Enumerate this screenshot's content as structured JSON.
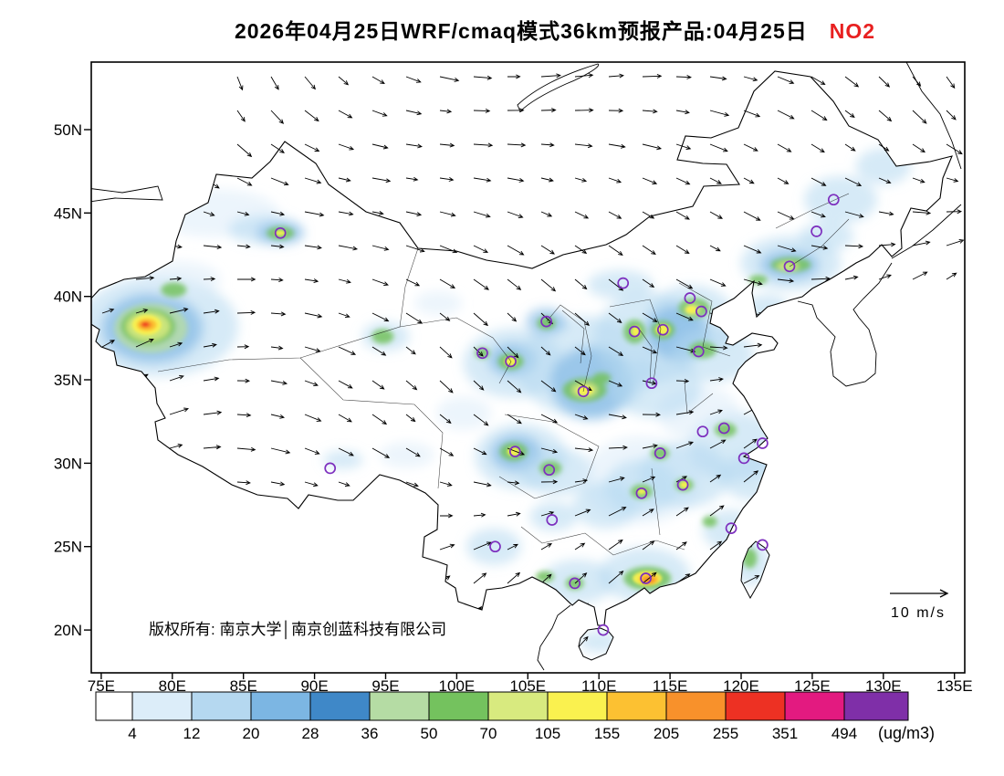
{
  "header": {
    "title": "2026年04月25日WRF/cmaq模式36km预报产品:04月25日",
    "pollutant": "NO2",
    "pollutant_color": "#e82020"
  },
  "map": {
    "copyright": "版权所有: 南京大学│南京创蓝科技有限公司",
    "wind_scale_label": "10 m/s",
    "marker_color": "#7d2fbe",
    "lat_ticks": [
      {
        "label": "50N",
        "lat": 50
      },
      {
        "label": "45N",
        "lat": 45
      },
      {
        "label": "40N",
        "lat": 40
      },
      {
        "label": "35N",
        "lat": 35
      },
      {
        "label": "30N",
        "lat": 30
      },
      {
        "label": "25N",
        "lat": 25
      },
      {
        "label": "20N",
        "lat": 20
      }
    ],
    "lon_ticks": [
      {
        "label": "75E",
        "lon": 75
      },
      {
        "label": "80E",
        "lon": 80
      },
      {
        "label": "85E",
        "lon": 85
      },
      {
        "label": "90E",
        "lon": 90
      },
      {
        "label": "95E",
        "lon": 95
      },
      {
        "label": "100E",
        "lon": 100
      },
      {
        "label": "105E",
        "lon": 105
      },
      {
        "label": "110E",
        "lon": 110
      },
      {
        "label": "115E",
        "lon": 115
      },
      {
        "label": "120E",
        "lon": 120
      },
      {
        "label": "125E",
        "lon": 125
      },
      {
        "label": "130E",
        "lon": 130
      },
      {
        "label": "135E",
        "lon": 135
      }
    ],
    "city_markers_format": "[lon,lat] purple ring markers",
    "city_markers": [
      [
        87.6,
        43.8
      ],
      [
        111.7,
        40.8
      ],
      [
        116.4,
        39.9
      ],
      [
        117.2,
        39.1
      ],
      [
        114.5,
        38.0
      ],
      [
        112.5,
        37.9
      ],
      [
        123.4,
        41.8
      ],
      [
        125.3,
        43.9
      ],
      [
        126.5,
        45.8
      ],
      [
        117.0,
        36.7
      ],
      [
        113.7,
        34.8
      ],
      [
        108.9,
        34.3
      ],
      [
        103.8,
        36.1
      ],
      [
        101.8,
        36.6
      ],
      [
        106.3,
        38.5
      ],
      [
        104.1,
        30.7
      ],
      [
        106.5,
        29.6
      ],
      [
        106.7,
        26.6
      ],
      [
        102.7,
        25.0
      ],
      [
        91.1,
        29.7
      ],
      [
        108.3,
        22.8
      ],
      [
        113.3,
        23.1
      ],
      [
        110.3,
        20.0
      ],
      [
        113.0,
        28.2
      ],
      [
        114.3,
        30.6
      ],
      [
        115.9,
        28.7
      ],
      [
        117.3,
        31.9
      ],
      [
        118.8,
        32.1
      ],
      [
        121.5,
        31.2
      ],
      [
        120.2,
        30.3
      ],
      [
        119.3,
        26.1
      ],
      [
        121.5,
        25.1
      ]
    ],
    "no2_shading_format": "[lon,lat,rx_px,ry_px,colorbar_level]",
    "no2_shading": [
      [
        83,
        45,
        70,
        26,
        1
      ],
      [
        86.5,
        44,
        40,
        16,
        2
      ],
      [
        79,
        38.2,
        88,
        55,
        2
      ],
      [
        78.6,
        38.1,
        55,
        38,
        3
      ],
      [
        80.5,
        41,
        45,
        20,
        1
      ],
      [
        95,
        37.6,
        26,
        16,
        2
      ],
      [
        98.7,
        39.6,
        26,
        13,
        1
      ],
      [
        104,
        36,
        55,
        38,
        2
      ],
      [
        103.9,
        36.2,
        26,
        18,
        3
      ],
      [
        109,
        35.8,
        75,
        55,
        2
      ],
      [
        109.5,
        34.8,
        45,
        40,
        3
      ],
      [
        113.5,
        37.5,
        60,
        50,
        2
      ],
      [
        116.5,
        38.5,
        50,
        40,
        2
      ],
      [
        115.5,
        37.8,
        35,
        30,
        3
      ],
      [
        118,
        36.5,
        45,
        30,
        2
      ],
      [
        123.5,
        42,
        55,
        30,
        2
      ],
      [
        123.4,
        41.9,
        32,
        16,
        3
      ],
      [
        127,
        45.8,
        40,
        26,
        2
      ],
      [
        130,
        47.8,
        30,
        20,
        2
      ],
      [
        126,
        43.6,
        30,
        16,
        2
      ],
      [
        104.5,
        30.4,
        50,
        36,
        2
      ],
      [
        104.2,
        30.6,
        28,
        20,
        3
      ],
      [
        107,
        29.5,
        40,
        26,
        2
      ],
      [
        113,
        29,
        65,
        48,
        1
      ],
      [
        113,
        28.6,
        40,
        30,
        2
      ],
      [
        116,
        29.3,
        50,
        36,
        2
      ],
      [
        119.5,
        31,
        50,
        38,
        2
      ],
      [
        120.8,
        29.2,
        35,
        26,
        2
      ],
      [
        117,
        33,
        45,
        30,
        1
      ],
      [
        114,
        34.5,
        50,
        32,
        2
      ],
      [
        113.2,
        23.3,
        50,
        30,
        2
      ],
      [
        108.5,
        22.9,
        40,
        24,
        2
      ],
      [
        102.6,
        25,
        30,
        20,
        2
      ],
      [
        119.2,
        26,
        30,
        22,
        2
      ],
      [
        120.7,
        24.1,
        20,
        26,
        2
      ],
      [
        110,
        19.3,
        22,
        12,
        2
      ],
      [
        92,
        30.2,
        22,
        10,
        2
      ],
      [
        87.6,
        43.8,
        26,
        12,
        3
      ],
      [
        111.5,
        40.7,
        36,
        16,
        2
      ],
      [
        106.3,
        38.5,
        22,
        14,
        3
      ],
      [
        110.5,
        27.5,
        36,
        26,
        2
      ],
      [
        106.8,
        26.8,
        26,
        16,
        2
      ],
      [
        96.5,
        30.5,
        30,
        14,
        1
      ],
      [
        100.5,
        33,
        30,
        18,
        1
      ],
      [
        121.8,
        39.3,
        25,
        15,
        2
      ],
      [
        78.5,
        38.1,
        40,
        27,
        5
      ],
      [
        78.3,
        38.2,
        30,
        20,
        6
      ],
      [
        80.1,
        40.4,
        14,
        8,
        6
      ],
      [
        87.6,
        43.8,
        15,
        7,
        6
      ],
      [
        94.8,
        37.6,
        12,
        8,
        6
      ],
      [
        103.8,
        36.1,
        14,
        9,
        6
      ],
      [
        106.3,
        38.4,
        10,
        7,
        6
      ],
      [
        109,
        34.4,
        24,
        13,
        6
      ],
      [
        112.5,
        37.9,
        12,
        13,
        6
      ],
      [
        114.5,
        38,
        13,
        10,
        6
      ],
      [
        116.7,
        39.3,
        17,
        11,
        6
      ],
      [
        117.3,
        36.8,
        15,
        9,
        6
      ],
      [
        123.5,
        41.9,
        22,
        8,
        6
      ],
      [
        104,
        30.7,
        15,
        10,
        6
      ],
      [
        106.6,
        29.7,
        12,
        8,
        6
      ],
      [
        113,
        28.3,
        12,
        8,
        6
      ],
      [
        116,
        28.7,
        10,
        7,
        6
      ],
      [
        118.9,
        32,
        12,
        8,
        6
      ],
      [
        114.3,
        30.6,
        10,
        7,
        6
      ],
      [
        113.4,
        23.1,
        26,
        13,
        6
      ],
      [
        108.3,
        22.8,
        10,
        7,
        6
      ],
      [
        120.6,
        24.3,
        8,
        11,
        6
      ],
      [
        101.8,
        36.6,
        8,
        6,
        6
      ],
      [
        110.2,
        35.1,
        10,
        6,
        6
      ],
      [
        106.2,
        23.2,
        10,
        6,
        6
      ],
      [
        121.2,
        41,
        10,
        5,
        6
      ],
      [
        117.8,
        26.5,
        8,
        6,
        6
      ],
      [
        78.3,
        38.2,
        24,
        16,
        7
      ],
      [
        109,
        34.4,
        14,
        8,
        7
      ],
      [
        116.6,
        39.2,
        9,
        6,
        7
      ],
      [
        123.3,
        41.8,
        12,
        5,
        7
      ],
      [
        78.2,
        38.3,
        16,
        11,
        8
      ],
      [
        103.8,
        36.1,
        7,
        5,
        8
      ],
      [
        109,
        34.35,
        9,
        5,
        8
      ],
      [
        104,
        30.7,
        7,
        5,
        8
      ],
      [
        113.4,
        23.1,
        16,
        8,
        8
      ],
      [
        116,
        28.7,
        5,
        4,
        8
      ],
      [
        112.6,
        37.9,
        5,
        6,
        8
      ],
      [
        87.6,
        43.8,
        6,
        3,
        8
      ],
      [
        113,
        28.3,
        5,
        3,
        8
      ],
      [
        114.5,
        38,
        8,
        6,
        8
      ],
      [
        116.5,
        39.2,
        6,
        4,
        8
      ],
      [
        78.2,
        38.3,
        11,
        7,
        9
      ],
      [
        113.5,
        23.05,
        11,
        6,
        9
      ],
      [
        78.15,
        38.3,
        7,
        4,
        10
      ],
      [
        113.5,
        23,
        7,
        4,
        10
      ],
      [
        78.1,
        38.32,
        4,
        2.5,
        11
      ]
    ]
  },
  "colorbar": {
    "tick_labels": [
      "4",
      "12",
      "20",
      "28",
      "36",
      "50",
      "70",
      "105",
      "155",
      "205",
      "255",
      "351",
      "494"
    ],
    "unit_label": "(ug/m3)",
    "colors": [
      "#ffffff",
      "#dcedf9",
      "#b5d8f0",
      "#7cb6e3",
      "#3f88c8",
      "#b5dca4",
      "#74c25e",
      "#d8ea7f",
      "#faf14f",
      "#fcc132",
      "#f8912b",
      "#ed3123",
      "#e31a80",
      "#7f2fa8"
    ]
  }
}
